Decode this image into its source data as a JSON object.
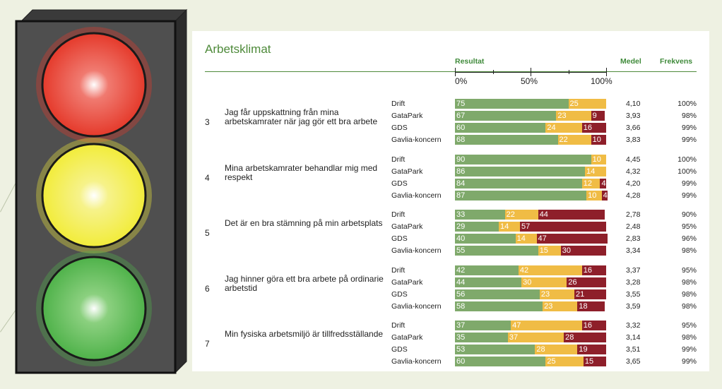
{
  "title": "Arbetsklimat",
  "headers": {
    "result": "Resultat",
    "mean": "Medel",
    "frequency": "Frekvens"
  },
  "colors": {
    "positive": "#7fa96b",
    "neutral": "#f0bc45",
    "negative": "#8e1f2a",
    "light_red": "#e53a2b",
    "light_yellow": "#f2ec3a",
    "light_green": "#4fb24a"
  },
  "chart_data": {
    "type": "bar",
    "orientation": "horizontal-stacked-100",
    "title": "Arbetsklimat",
    "xlabel": "Resultat",
    "x_ticks": [
      "0%",
      "50%",
      "100%"
    ],
    "xlim": [
      0,
      100
    ],
    "series_names": [
      "positive",
      "neutral",
      "negative"
    ],
    "questions": [
      {
        "num": "3",
        "text": "Jag får uppskattning från mina arbetskamrater när jag gör ett bra arbete",
        "rows": [
          {
            "group": "Drift",
            "values": [
              75,
              25,
              0
            ],
            "labels": [
              "75",
              "25",
              ""
            ],
            "mean": "4,10",
            "freq": "100%"
          },
          {
            "group": "GataPark",
            "values": [
              67,
              23,
              9
            ],
            "labels": [
              "67",
              "23",
              "9"
            ],
            "mean": "3,93",
            "freq": "98%"
          },
          {
            "group": "GDS",
            "values": [
              60,
              24,
              16
            ],
            "labels": [
              "60",
              "24",
              "16"
            ],
            "mean": "3,66",
            "freq": "99%"
          },
          {
            "group": "Gavlia-koncern",
            "values": [
              68,
              22,
              10
            ],
            "labels": [
              "68",
              "22",
              "10"
            ],
            "mean": "3,83",
            "freq": "99%"
          }
        ]
      },
      {
        "num": "4",
        "text": "Mina arbetskamrater behandlar mig med respekt",
        "rows": [
          {
            "group": "Drift",
            "values": [
              90,
              10,
              0
            ],
            "labels": [
              "90",
              "10",
              ""
            ],
            "mean": "4,45",
            "freq": "100%"
          },
          {
            "group": "GataPark",
            "values": [
              86,
              14,
              0
            ],
            "labels": [
              "86",
              "14",
              ""
            ],
            "mean": "4,32",
            "freq": "100%"
          },
          {
            "group": "GDS",
            "values": [
              84,
              12,
              4
            ],
            "labels": [
              "84",
              "12",
              "4"
            ],
            "mean": "4,20",
            "freq": "99%"
          },
          {
            "group": "Gavlia-koncern",
            "values": [
              87,
              10,
              4
            ],
            "labels": [
              "87",
              "10",
              "4"
            ],
            "mean": "4,28",
            "freq": "99%"
          }
        ]
      },
      {
        "num": "5",
        "text": "Det är en bra stämning på min arbetsplats",
        "rows": [
          {
            "group": "Drift",
            "values": [
              33,
              22,
              44
            ],
            "labels": [
              "33",
              "22",
              "44"
            ],
            "mean": "2,78",
            "freq": "90%"
          },
          {
            "group": "GataPark",
            "values": [
              29,
              14,
              57
            ],
            "labels": [
              "29",
              "14",
              "57"
            ],
            "mean": "2,48",
            "freq": "95%"
          },
          {
            "group": "GDS",
            "values": [
              40,
              14,
              47
            ],
            "labels": [
              "40",
              "14",
              "47"
            ],
            "mean": "2,83",
            "freq": "96%"
          },
          {
            "group": "Gavlia-koncern",
            "values": [
              55,
              15,
              30
            ],
            "labels": [
              "55",
              "15",
              "30"
            ],
            "mean": "3,34",
            "freq": "98%"
          }
        ]
      },
      {
        "num": "6",
        "text": "Jag hinner göra ett bra arbete på ordinarie arbetstid",
        "rows": [
          {
            "group": "Drift",
            "values": [
              42,
              42,
              16
            ],
            "labels": [
              "42",
              "42",
              "16"
            ],
            "mean": "3,37",
            "freq": "95%"
          },
          {
            "group": "GataPark",
            "values": [
              44,
              30,
              26
            ],
            "labels": [
              "44",
              "30",
              "26"
            ],
            "mean": "3,28",
            "freq": "98%"
          },
          {
            "group": "GDS",
            "values": [
              56,
              23,
              21
            ],
            "labels": [
              "56",
              "23",
              "21"
            ],
            "mean": "3,55",
            "freq": "98%"
          },
          {
            "group": "Gavlia-koncern",
            "values": [
              58,
              23,
              18
            ],
            "labels": [
              "58",
              "23",
              "18"
            ],
            "mean": "3,59",
            "freq": "98%"
          }
        ]
      },
      {
        "num": "7",
        "text": "Min fysiska arbetsmiljö är tillfredsställande",
        "rows": [
          {
            "group": "Drift",
            "values": [
              37,
              47,
              16
            ],
            "labels": [
              "37",
              "47",
              "16"
            ],
            "mean": "3,32",
            "freq": "95%"
          },
          {
            "group": "GataPark",
            "values": [
              35,
              37,
              28
            ],
            "labels": [
              "35",
              "37",
              "28"
            ],
            "mean": "3,14",
            "freq": "98%"
          },
          {
            "group": "GDS",
            "values": [
              53,
              28,
              19
            ],
            "labels": [
              "53",
              "28",
              "19"
            ],
            "mean": "3,51",
            "freq": "99%"
          },
          {
            "group": "Gavlia-koncern",
            "values": [
              60,
              25,
              15
            ],
            "labels": [
              "60",
              "25",
              "15"
            ],
            "mean": "3,65",
            "freq": "99%"
          }
        ]
      }
    ]
  }
}
